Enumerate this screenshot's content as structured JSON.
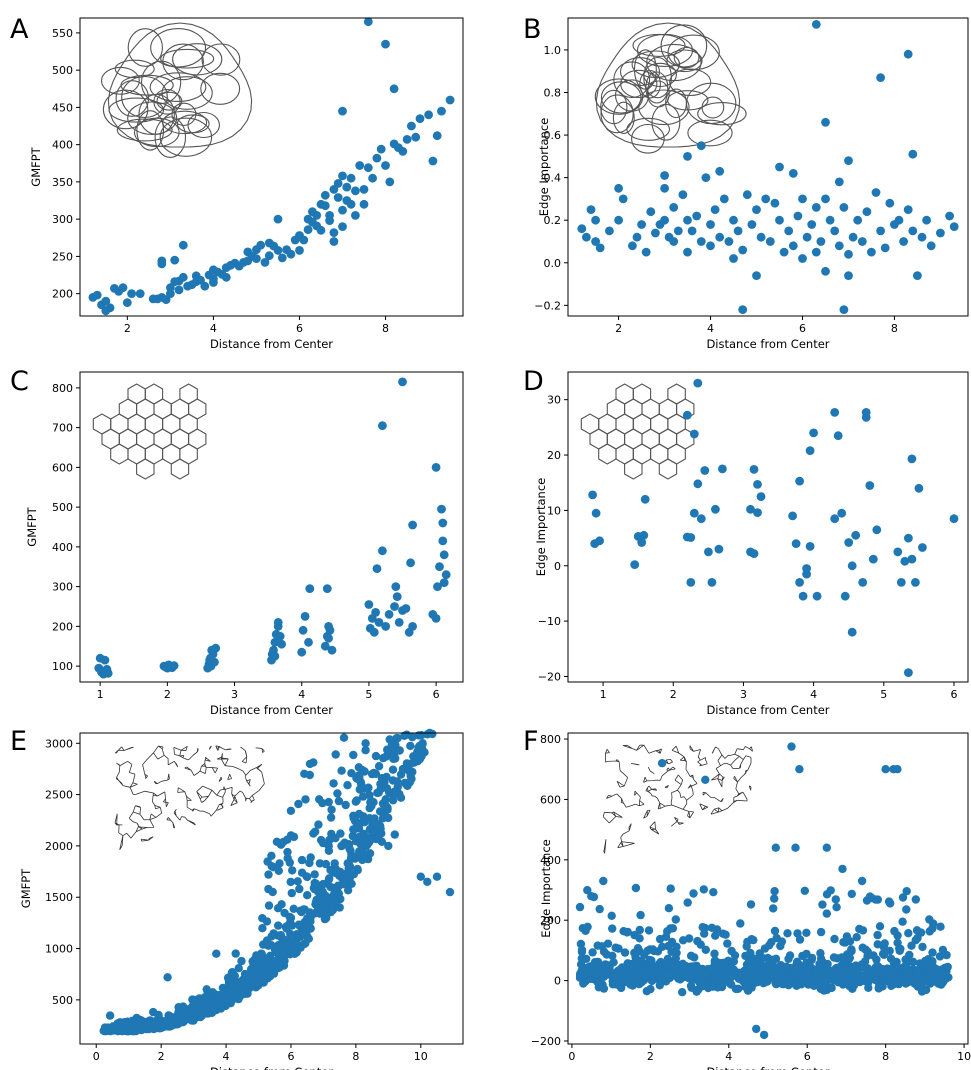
{
  "figure": {
    "panels": [
      {
        "letter": "A",
        "xlabel": "Distance from Center",
        "ylabel": "GMFPT",
        "xticks": [
          2,
          4,
          6,
          8
        ],
        "yticks": [
          200,
          250,
          300,
          350,
          400,
          450,
          500,
          550
        ],
        "xticklabels": [
          "2",
          "4",
          "6",
          "8"
        ],
        "yticklabels": [
          "200",
          "250",
          "300",
          "350",
          "400",
          "450",
          "500",
          "550"
        ]
      },
      {
        "letter": "B",
        "xlabel": "Distance from Center",
        "ylabel": "Edge Importance",
        "xticks": [
          2,
          4,
          6,
          8
        ],
        "yticks": [
          -0.2,
          0,
          0.2,
          0.4,
          0.6,
          0.8,
          1.0
        ],
        "xticklabels": [
          "2",
          "4",
          "6",
          "8"
        ],
        "yticklabels": [
          "−0.2",
          "0.0",
          "0.2",
          "0.4",
          "0.6",
          "0.8",
          "1.0"
        ]
      },
      {
        "letter": "C",
        "xlabel": "Distance from Center",
        "ylabel": "GMFPT",
        "xticks": [
          1,
          2,
          3,
          4,
          5,
          6
        ],
        "yticks": [
          100,
          200,
          300,
          400,
          500,
          600,
          700,
          800
        ],
        "xticklabels": [
          "1",
          "2",
          "3",
          "4",
          "5",
          "6"
        ],
        "yticklabels": [
          "100",
          "200",
          "300",
          "400",
          "500",
          "600",
          "700",
          "800"
        ]
      },
      {
        "letter": "D",
        "xlabel": "Distance from Center",
        "ylabel": "Edge Importance",
        "xticks": [
          1,
          2,
          3,
          4,
          5,
          6
        ],
        "yticks": [
          -20,
          -10,
          0,
          10,
          20,
          30
        ],
        "xticklabels": [
          "1",
          "2",
          "3",
          "4",
          "5",
          "6"
        ],
        "yticklabels": [
          "−20",
          "−10",
          "0",
          "10",
          "20",
          "30"
        ]
      },
      {
        "letter": "E",
        "xlabel": "Distance from Center",
        "ylabel": "GMFPT",
        "xticks": [
          0,
          2,
          4,
          6,
          8,
          10
        ],
        "yticks": [
          500,
          1000,
          1500,
          2000,
          2500,
          3000
        ],
        "xticklabels": [
          "0",
          "2",
          "4",
          "6",
          "8",
          "10"
        ],
        "yticklabels": [
          "500",
          "1000",
          "1500",
          "2000",
          "2500",
          "3000"
        ]
      },
      {
        "letter": "F",
        "xlabel": "Distance from Center",
        "ylabel": "Edge Importance",
        "xticks": [
          0,
          2,
          4,
          6,
          8,
          10
        ],
        "yticks": [
          -200,
          0,
          200,
          400,
          600,
          800
        ],
        "xticklabels": [
          "0",
          "2",
          "4",
          "6",
          "8",
          "10"
        ],
        "yticklabels": [
          "−200",
          "0",
          "200",
          "400",
          "600",
          "800"
        ]
      }
    ]
  },
  "colors": {
    "marker": "#1f77b4",
    "network": "#555555"
  },
  "chart_data": [
    {
      "type": "scatter",
      "panel": "A",
      "xlabel": "Distance from Center",
      "ylabel": "GMFPT",
      "xlim": [
        0.9,
        9.8
      ],
      "ylim": [
        170,
        570
      ],
      "grid": false,
      "inset": "irregular-network-icon",
      "x": [
        1.2,
        1.3,
        1.4,
        1.5,
        1.5,
        1.6,
        1.7,
        1.8,
        1.9,
        2.0,
        2.1,
        2.3,
        2.6,
        2.7,
        2.8,
        2.8,
        2.9,
        3.0,
        3.0,
        3.1,
        3.2,
        3.2,
        3.3,
        3.4,
        3.5,
        3.6,
        3.6,
        3.7,
        3.8,
        3.9,
        4.0,
        4.0,
        4.1,
        4.2,
        4.3,
        4.3,
        4.4,
        4.5,
        4.6,
        4.7,
        4.8,
        4.8,
        4.9,
        5.0,
        5.0,
        5.1,
        5.2,
        5.3,
        5.3,
        5.4,
        5.5,
        5.6,
        5.7,
        5.8,
        5.9,
        6.0,
        6.0,
        6.1,
        6.2,
        6.2,
        6.3,
        6.3,
        6.4,
        6.4,
        6.5,
        6.5,
        6.6,
        6.6,
        6.7,
        6.7,
        6.8,
        6.8,
        6.9,
        6.9,
        7.0,
        7.0,
        7.0,
        7.1,
        7.1,
        7.2,
        7.2,
        7.3,
        7.3,
        7.4,
        7.5,
        7.5,
        7.6,
        7.7,
        7.8,
        7.9,
        8.0,
        8.1,
        8.2,
        8.3,
        8.4,
        8.5,
        8.6,
        8.7,
        8.8,
        9.0,
        9.1,
        9.2,
        9.3,
        9.5,
        7.6,
        8.0,
        8.2,
        7.0,
        3.3,
        3.1,
        2.8,
        4.0,
        6.8,
        5.5
      ],
      "y": [
        195,
        198,
        185,
        177,
        190,
        181,
        207,
        203,
        208,
        188,
        200,
        200,
        193,
        193,
        244,
        195,
        192,
        208,
        200,
        216,
        217,
        205,
        222,
        210,
        212,
        224,
        216,
        218,
        210,
        225,
        215,
        232,
        229,
        226,
        235,
        222,
        238,
        241,
        237,
        242,
        256,
        244,
        250,
        247,
        259,
        265,
        242,
        268,
        251,
        264,
        258,
        248,
        259,
        253,
        272,
        278,
        258,
        272,
        300,
        286,
        296,
        310,
        305,
        291,
        320,
        285,
        318,
        332,
        298,
        305,
        340,
        282,
        329,
        348,
        312,
        358,
        290,
        343,
        325,
        355,
        320,
        338,
        305,
        372,
        340,
        320,
        369,
        355,
        382,
        394,
        372,
        350,
        401,
        396,
        391,
        407,
        425,
        410,
        435,
        440,
        378,
        412,
        445,
        460,
        565,
        535,
        475,
        445,
        265,
        245,
        240,
        220,
        270,
        300
      ]
    },
    {
      "type": "scatter",
      "panel": "B",
      "xlabel": "Distance from Center",
      "ylabel": "Edge Importance",
      "xlim": [
        0.9,
        9.6
      ],
      "ylim": [
        -0.25,
        1.15
      ],
      "grid": false,
      "inset": "irregular-network-icon",
      "x": [
        1.2,
        1.3,
        1.4,
        1.5,
        1.5,
        1.6,
        1.8,
        2.0,
        2.1,
        2.3,
        2.4,
        2.5,
        2.6,
        2.7,
        2.8,
        2.9,
        3.0,
        3.0,
        3.1,
        3.2,
        3.2,
        3.3,
        3.4,
        3.5,
        3.5,
        3.6,
        3.7,
        3.8,
        3.9,
        4.0,
        4.0,
        4.1,
        4.2,
        4.3,
        4.4,
        4.5,
        4.5,
        4.6,
        4.7,
        4.8,
        4.9,
        5.0,
        5.0,
        5.1,
        5.2,
        5.3,
        5.4,
        5.5,
        5.6,
        5.7,
        5.8,
        5.9,
        6.0,
        6.0,
        6.1,
        6.2,
        6.3,
        6.3,
        6.4,
        6.5,
        6.5,
        6.6,
        6.7,
        6.8,
        6.9,
        7.0,
        7.0,
        7.1,
        7.2,
        7.3,
        7.4,
        7.5,
        7.6,
        7.7,
        7.8,
        7.9,
        8.0,
        8.1,
        8.2,
        8.3,
        8.4,
        8.5,
        8.6,
        8.7,
        8.8,
        9.0,
        9.2,
        9.3,
        6.3,
        8.3,
        7.7,
        6.5,
        8.4,
        7.0,
        4.7,
        6.9,
        3.8,
        3.5,
        5.5,
        4.2,
        3.0,
        2.0,
        6.8,
        5.8
      ],
      "y": [
        0.16,
        0.12,
        0.25,
        0.2,
        0.1,
        0.07,
        0.15,
        0.2,
        0.3,
        0.08,
        0.12,
        0.18,
        0.05,
        0.24,
        0.14,
        0.18,
        0.2,
        0.35,
        0.12,
        0.1,
        0.26,
        0.15,
        0.32,
        0.2,
        0.05,
        0.15,
        0.22,
        0.1,
        0.4,
        0.18,
        0.08,
        0.25,
        0.12,
        0.3,
        0.1,
        0.2,
        0.02,
        0.15,
        0.06,
        0.32,
        0.18,
        0.25,
        -0.06,
        0.12,
        0.3,
        0.1,
        0.28,
        0.2,
        0.05,
        0.15,
        0.08,
        0.22,
        0.3,
        0.02,
        0.12,
        0.18,
        0.26,
        0.05,
        0.1,
        0.3,
        -0.04,
        0.2,
        0.15,
        0.08,
        0.26,
        0.04,
        -0.06,
        0.12,
        0.2,
        0.1,
        0.24,
        0.05,
        0.33,
        0.15,
        0.07,
        0.28,
        0.18,
        0.2,
        0.1,
        0.25,
        0.15,
        -0.06,
        0.12,
        0.2,
        0.08,
        0.14,
        0.22,
        0.17,
        1.12,
        0.98,
        0.87,
        0.66,
        0.51,
        0.48,
        -0.22,
        -0.22,
        0.55,
        0.5,
        0.45,
        0.43,
        0.41,
        0.35,
        0.38,
        0.42
      ]
    },
    {
      "type": "scatter",
      "panel": "C",
      "xlabel": "Distance from Center",
      "ylabel": "GMFPT",
      "xlim": [
        0.7,
        6.4
      ],
      "ylim": [
        60,
        840
      ],
      "grid": false,
      "inset": "hexagonal-network-icon",
      "x": [
        0.98,
        1.0,
        1.02,
        1.05,
        1.07,
        1.1,
        1.1,
        1.12,
        1.95,
        1.98,
        2.0,
        2.02,
        2.05,
        2.07,
        2.1,
        2.6,
        2.62,
        2.64,
        2.66,
        2.68,
        2.7,
        2.72,
        2.65,
        2.63,
        3.55,
        3.58,
        3.6,
        3.62,
        3.65,
        3.68,
        3.7,
        3.56,
        3.6,
        3.65,
        4.0,
        4.02,
        4.05,
        4.1,
        4.12,
        4.35,
        4.38,
        4.4,
        4.42,
        4.45,
        4.4,
        4.38,
        5.0,
        5.02,
        5.05,
        5.08,
        5.1,
        5.12,
        5.15,
        5.2,
        5.25,
        5.3,
        5.38,
        5.4,
        5.42,
        5.45,
        5.5,
        5.55,
        5.6,
        5.62,
        5.65,
        5.95,
        6.0,
        6.02,
        6.05,
        6.08,
        6.1,
        6.12,
        6.15,
        6.0,
        5.5,
        5.2,
        6.1,
        6.12,
        5.65
      ],
      "y": [
        95,
        120,
        85,
        80,
        115,
        92,
        88,
        82,
        100,
        97,
        95,
        103,
        99,
        96,
        101,
        95,
        105,
        120,
        140,
        130,
        110,
        145,
        100,
        115,
        115,
        140,
        160,
        180,
        200,
        175,
        155,
        130,
        125,
        210,
        135,
        190,
        225,
        160,
        295,
        150,
        175,
        200,
        190,
        140,
        170,
        295,
        255,
        195,
        220,
        185,
        235,
        345,
        210,
        390,
        200,
        230,
        250,
        300,
        275,
        210,
        240,
        245,
        185,
        360,
        455,
        230,
        220,
        300,
        350,
        495,
        415,
        380,
        330,
        600,
        815,
        705,
        460,
        310,
        200
      ]
    },
    {
      "type": "scatter",
      "panel": "D",
      "xlabel": "Distance from Center",
      "ylabel": "Edge Importance",
      "xlim": [
        0.5,
        6.2
      ],
      "ylim": [
        -21,
        35
      ],
      "grid": false,
      "inset": "hexagonal-network-icon",
      "x": [
        0.85,
        0.88,
        0.9,
        0.95,
        1.45,
        1.5,
        1.55,
        1.6,
        1.58,
        2.2,
        2.25,
        2.3,
        2.35,
        2.4,
        2.45,
        2.5,
        2.55,
        2.6,
        2.65,
        2.7,
        2.3,
        2.25,
        3.1,
        3.15,
        3.2,
        3.25,
        3.1,
        3.2,
        3.15,
        3.7,
        3.75,
        3.8,
        3.85,
        3.9,
        3.95,
        4.0,
        4.05,
        3.95,
        3.8,
        4.3,
        4.35,
        4.4,
        4.45,
        4.5,
        4.55,
        4.6,
        4.7,
        4.75,
        4.8,
        4.85,
        4.9,
        5.2,
        5.25,
        5.3,
        5.35,
        5.4,
        5.45,
        5.5,
        5.55,
        6.0,
        5.35,
        5.4,
        4.55,
        2.35,
        2.2,
        3.9,
        4.3,
        4.75
      ],
      "y": [
        12.8,
        4.0,
        9.5,
        4.5,
        0.2,
        5.3,
        4.2,
        12,
        5.5,
        5.2,
        -3,
        9.5,
        14.8,
        8.5,
        17.2,
        2.5,
        -3,
        10.2,
        3.0,
        17.5,
        23.8,
        5.1,
        10.2,
        17.4,
        9.6,
        12.5,
        2.5,
        14.7,
        2.2,
        9.0,
        4.0,
        15.3,
        -5.5,
        -1.5,
        3.5,
        24.0,
        -5.5,
        20.8,
        -3.0,
        8.5,
        23.5,
        9.5,
        -5.5,
        4.2,
        0,
        5.5,
        -3.0,
        27.7,
        14.5,
        1.2,
        6.5,
        2.5,
        -3.0,
        0.8,
        5.0,
        19.3,
        -3.0,
        14.0,
        3.3,
        8.5,
        -19.3,
        1.2,
        -12.0,
        33.0,
        27.2,
        -0.5,
        27.7,
        26.8
      ]
    },
    {
      "type": "scatter",
      "panel": "E",
      "xlabel": "Distance from Center",
      "ylabel": "GMFPT",
      "xlim": [
        -0.5,
        11.3
      ],
      "ylim": [
        70,
        3100
      ],
      "grid": false,
      "inset": "road-network-icon",
      "note_outliers_x": [
        8.3,
        8.5,
        8.0,
        9.2,
        8.8,
        9.0,
        10.0,
        10.5,
        10.9,
        10.2,
        7.5,
        7.0,
        6.5,
        6.0,
        3.7,
        2.2
      ],
      "note_outliers_y": [
        3000,
        2700,
        2080,
        2110,
        2040,
        2000,
        1700,
        1700,
        1550,
        1650,
        1400,
        1420,
        1520,
        1300,
        950,
        720
      ]
    },
    {
      "type": "scatter",
      "panel": "F",
      "xlabel": "Distance from Center",
      "ylabel": "Edge Importance",
      "xlim": [
        -0.1,
        10.1
      ],
      "ylim": [
        -210,
        820
      ],
      "grid": false,
      "inset": "road-network-icon",
      "note_outliers_x": [
        5.6,
        5.8,
        8.0,
        8.2,
        8.3,
        3.4,
        2.3,
        0.8,
        5.2,
        5.7,
        6.5,
        6.9,
        7.4,
        4.7,
        4.9
      ],
      "note_outliers_y": [
        775,
        700,
        700,
        700,
        700,
        665,
        720,
        330,
        440,
        440,
        440,
        370,
        330,
        -160,
        -180
      ]
    }
  ]
}
